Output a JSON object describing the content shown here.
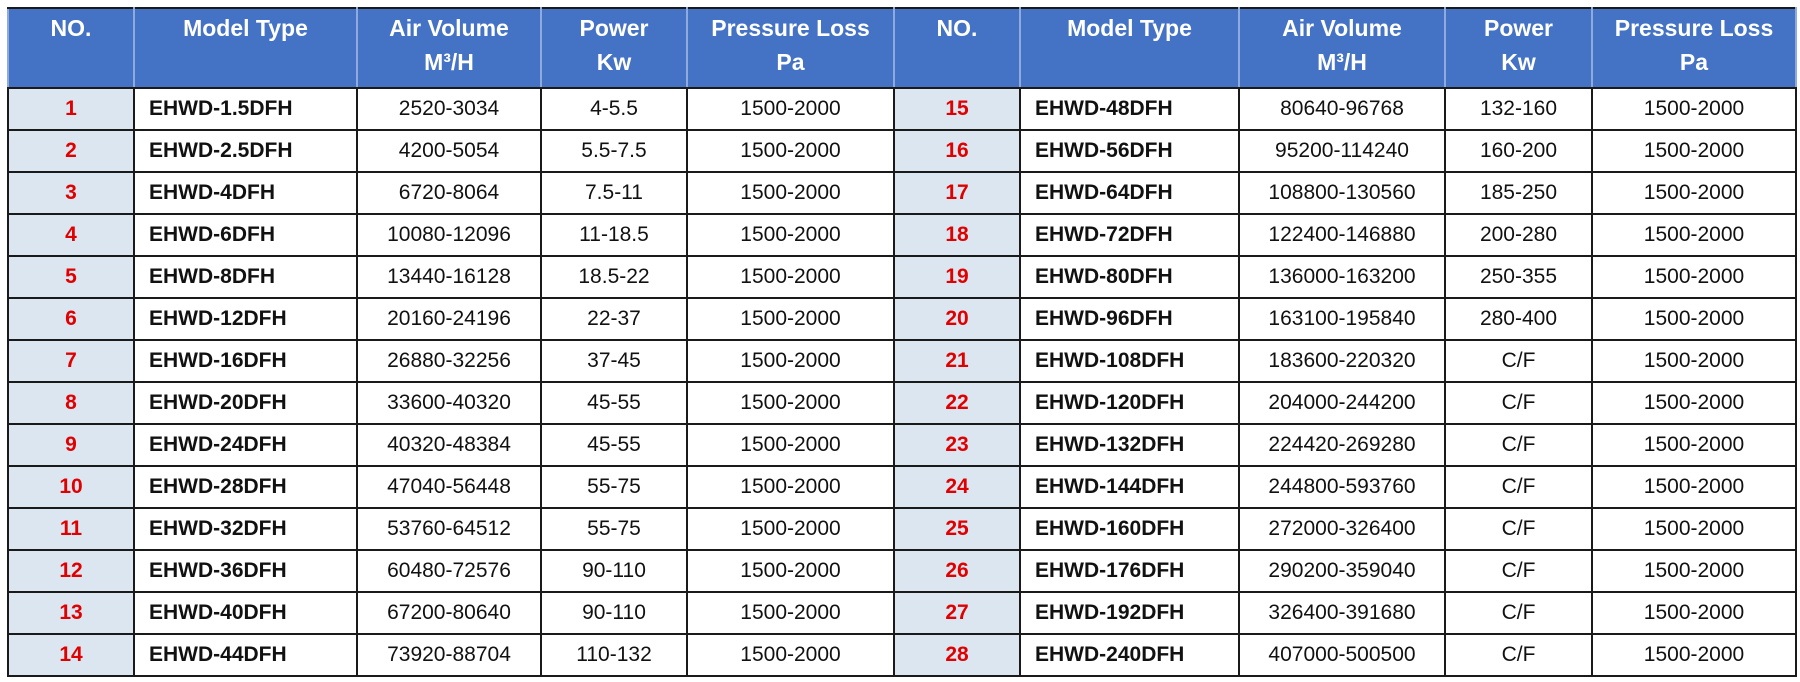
{
  "table": {
    "headers": [
      [
        "NO."
      ],
      [
        "Model Type"
      ],
      [
        "Air Volume",
        "M³/H"
      ],
      [
        "Power",
        "Kw"
      ],
      [
        "Pressure Loss",
        "Pa"
      ],
      [
        "NO."
      ],
      [
        "Model Type"
      ],
      [
        "Air Volume",
        "M³/H"
      ],
      [
        "Power",
        "Kw"
      ],
      [
        "Pressure Loss",
        "Pa"
      ]
    ],
    "rows": [
      [
        "1",
        "EHWD-1.5DFH",
        "2520-3034",
        "4-5.5",
        "1500-2000",
        "15",
        "EHWD-48DFH",
        "80640-96768",
        "132-160",
        "1500-2000"
      ],
      [
        "2",
        "EHWD-2.5DFH",
        "4200-5054",
        "5.5-7.5",
        "1500-2000",
        "16",
        "EHWD-56DFH",
        "95200-114240",
        "160-200",
        "1500-2000"
      ],
      [
        "3",
        "EHWD-4DFH",
        "6720-8064",
        "7.5-11",
        "1500-2000",
        "17",
        "EHWD-64DFH",
        "108800-130560",
        "185-250",
        "1500-2000"
      ],
      [
        "4",
        "EHWD-6DFH",
        "10080-12096",
        "11-18.5",
        "1500-2000",
        "18",
        "EHWD-72DFH",
        "122400-146880",
        "200-280",
        "1500-2000"
      ],
      [
        "5",
        "EHWD-8DFH",
        "13440-16128",
        "18.5-22",
        "1500-2000",
        "19",
        "EHWD-80DFH",
        "136000-163200",
        "250-355",
        "1500-2000"
      ],
      [
        "6",
        "EHWD-12DFH",
        "20160-24196",
        "22-37",
        "1500-2000",
        "20",
        "EHWD-96DFH",
        "163100-195840",
        "280-400",
        "1500-2000"
      ],
      [
        "7",
        "EHWD-16DFH",
        "26880-32256",
        "37-45",
        "1500-2000",
        "21",
        "EHWD-108DFH",
        "183600-220320",
        "C/F",
        "1500-2000"
      ],
      [
        "8",
        "EHWD-20DFH",
        "33600-40320",
        "45-55",
        "1500-2000",
        "22",
        "EHWD-120DFH",
        "204000-244200",
        "C/F",
        "1500-2000"
      ],
      [
        "9",
        "EHWD-24DFH",
        "40320-48384",
        "45-55",
        "1500-2000",
        "23",
        "EHWD-132DFH",
        "224420-269280",
        "C/F",
        "1500-2000"
      ],
      [
        "10",
        "EHWD-28DFH",
        "47040-56448",
        "55-75",
        "1500-2000",
        "24",
        "EHWD-144DFH",
        "244800-593760",
        "C/F",
        "1500-2000"
      ],
      [
        "11",
        "EHWD-32DFH",
        "53760-64512",
        "55-75",
        "1500-2000",
        "25",
        "EHWD-160DFH",
        "272000-326400",
        "C/F",
        "1500-2000"
      ],
      [
        "12",
        "EHWD-36DFH",
        "60480-72576",
        "90-110",
        "1500-2000",
        "26",
        "EHWD-176DFH",
        "290200-359040",
        "C/F",
        "1500-2000"
      ],
      [
        "13",
        "EHWD-40DFH",
        "67200-80640",
        "90-110",
        "1500-2000",
        "27",
        "EHWD-192DFH",
        "326400-391680",
        "C/F",
        "1500-2000"
      ],
      [
        "14",
        "EHWD-44DFH",
        "73920-88704",
        "110-132",
        "1500-2000",
        "28",
        "EHWD-240DFH",
        "407000-500500",
        "C/F",
        "1500-2000"
      ]
    ]
  }
}
